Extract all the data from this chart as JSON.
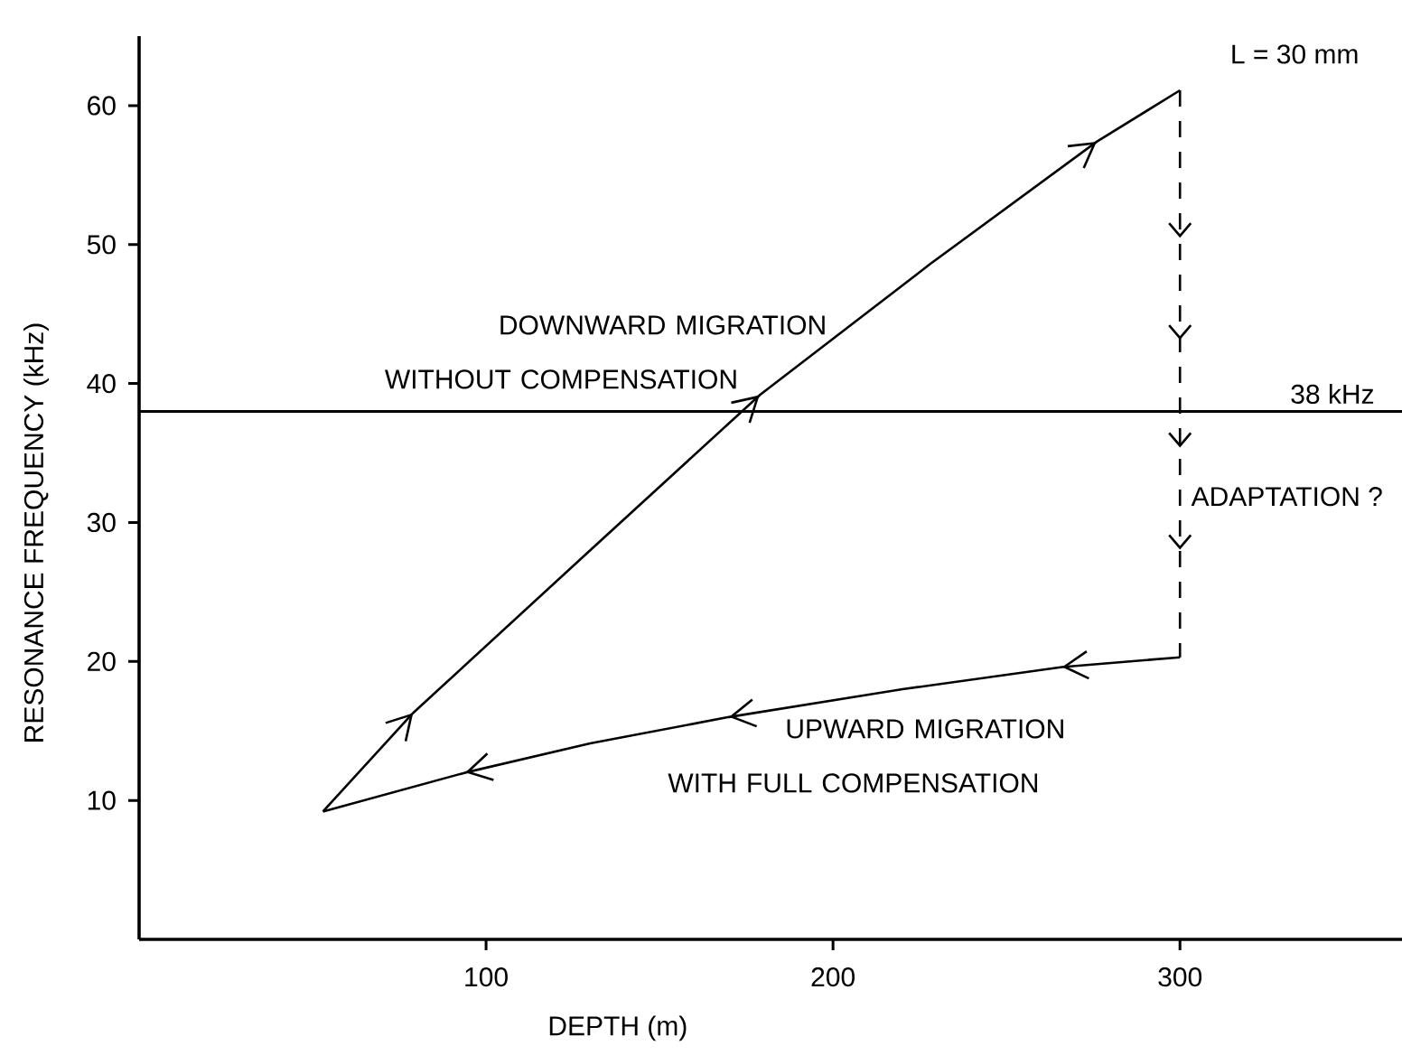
{
  "chart_data": {
    "type": "line",
    "xlabel": "DEPTH (m)",
    "ylabel": "RESONANCE FREQUENCY (kHz)",
    "annotations": [
      "L = 30 mm"
    ],
    "xlim": [
      0,
      364
    ],
    "ylim": [
      0,
      65
    ],
    "xticks": [
      100,
      200,
      300
    ],
    "yticks": [
      10,
      20,
      30,
      40,
      50,
      60
    ],
    "marker": "none",
    "series": [
      {
        "name": "DOWNWARD MIGRATION WITHOUT COMPENSATION",
        "color": "#000000",
        "x": [
          53,
          79,
          130,
          179,
          228,
          276,
          300
        ],
        "values": [
          9.2,
          16.3,
          28.0,
          39.2,
          48.6,
          57.4,
          61.1
        ]
      },
      {
        "name": "UPWARD MIGRATION WITH FULL COMPENSATION",
        "color": "#000000",
        "x": [
          300,
          266,
          220,
          170,
          130,
          94,
          53
        ],
        "values": [
          20.3,
          19.6,
          18.0,
          16.0,
          14.1,
          12.0,
          9.2
        ]
      },
      {
        "name": "ADAPTATION ?",
        "color": "#000000",
        "line_style": "dashed",
        "x": [
          300,
          300
        ],
        "values": [
          61.1,
          20.3
        ]
      }
    ],
    "ref_lines": [
      {
        "axis": "y",
        "value": 38,
        "label": "38 kHz",
        "color": "#000000"
      }
    ]
  }
}
